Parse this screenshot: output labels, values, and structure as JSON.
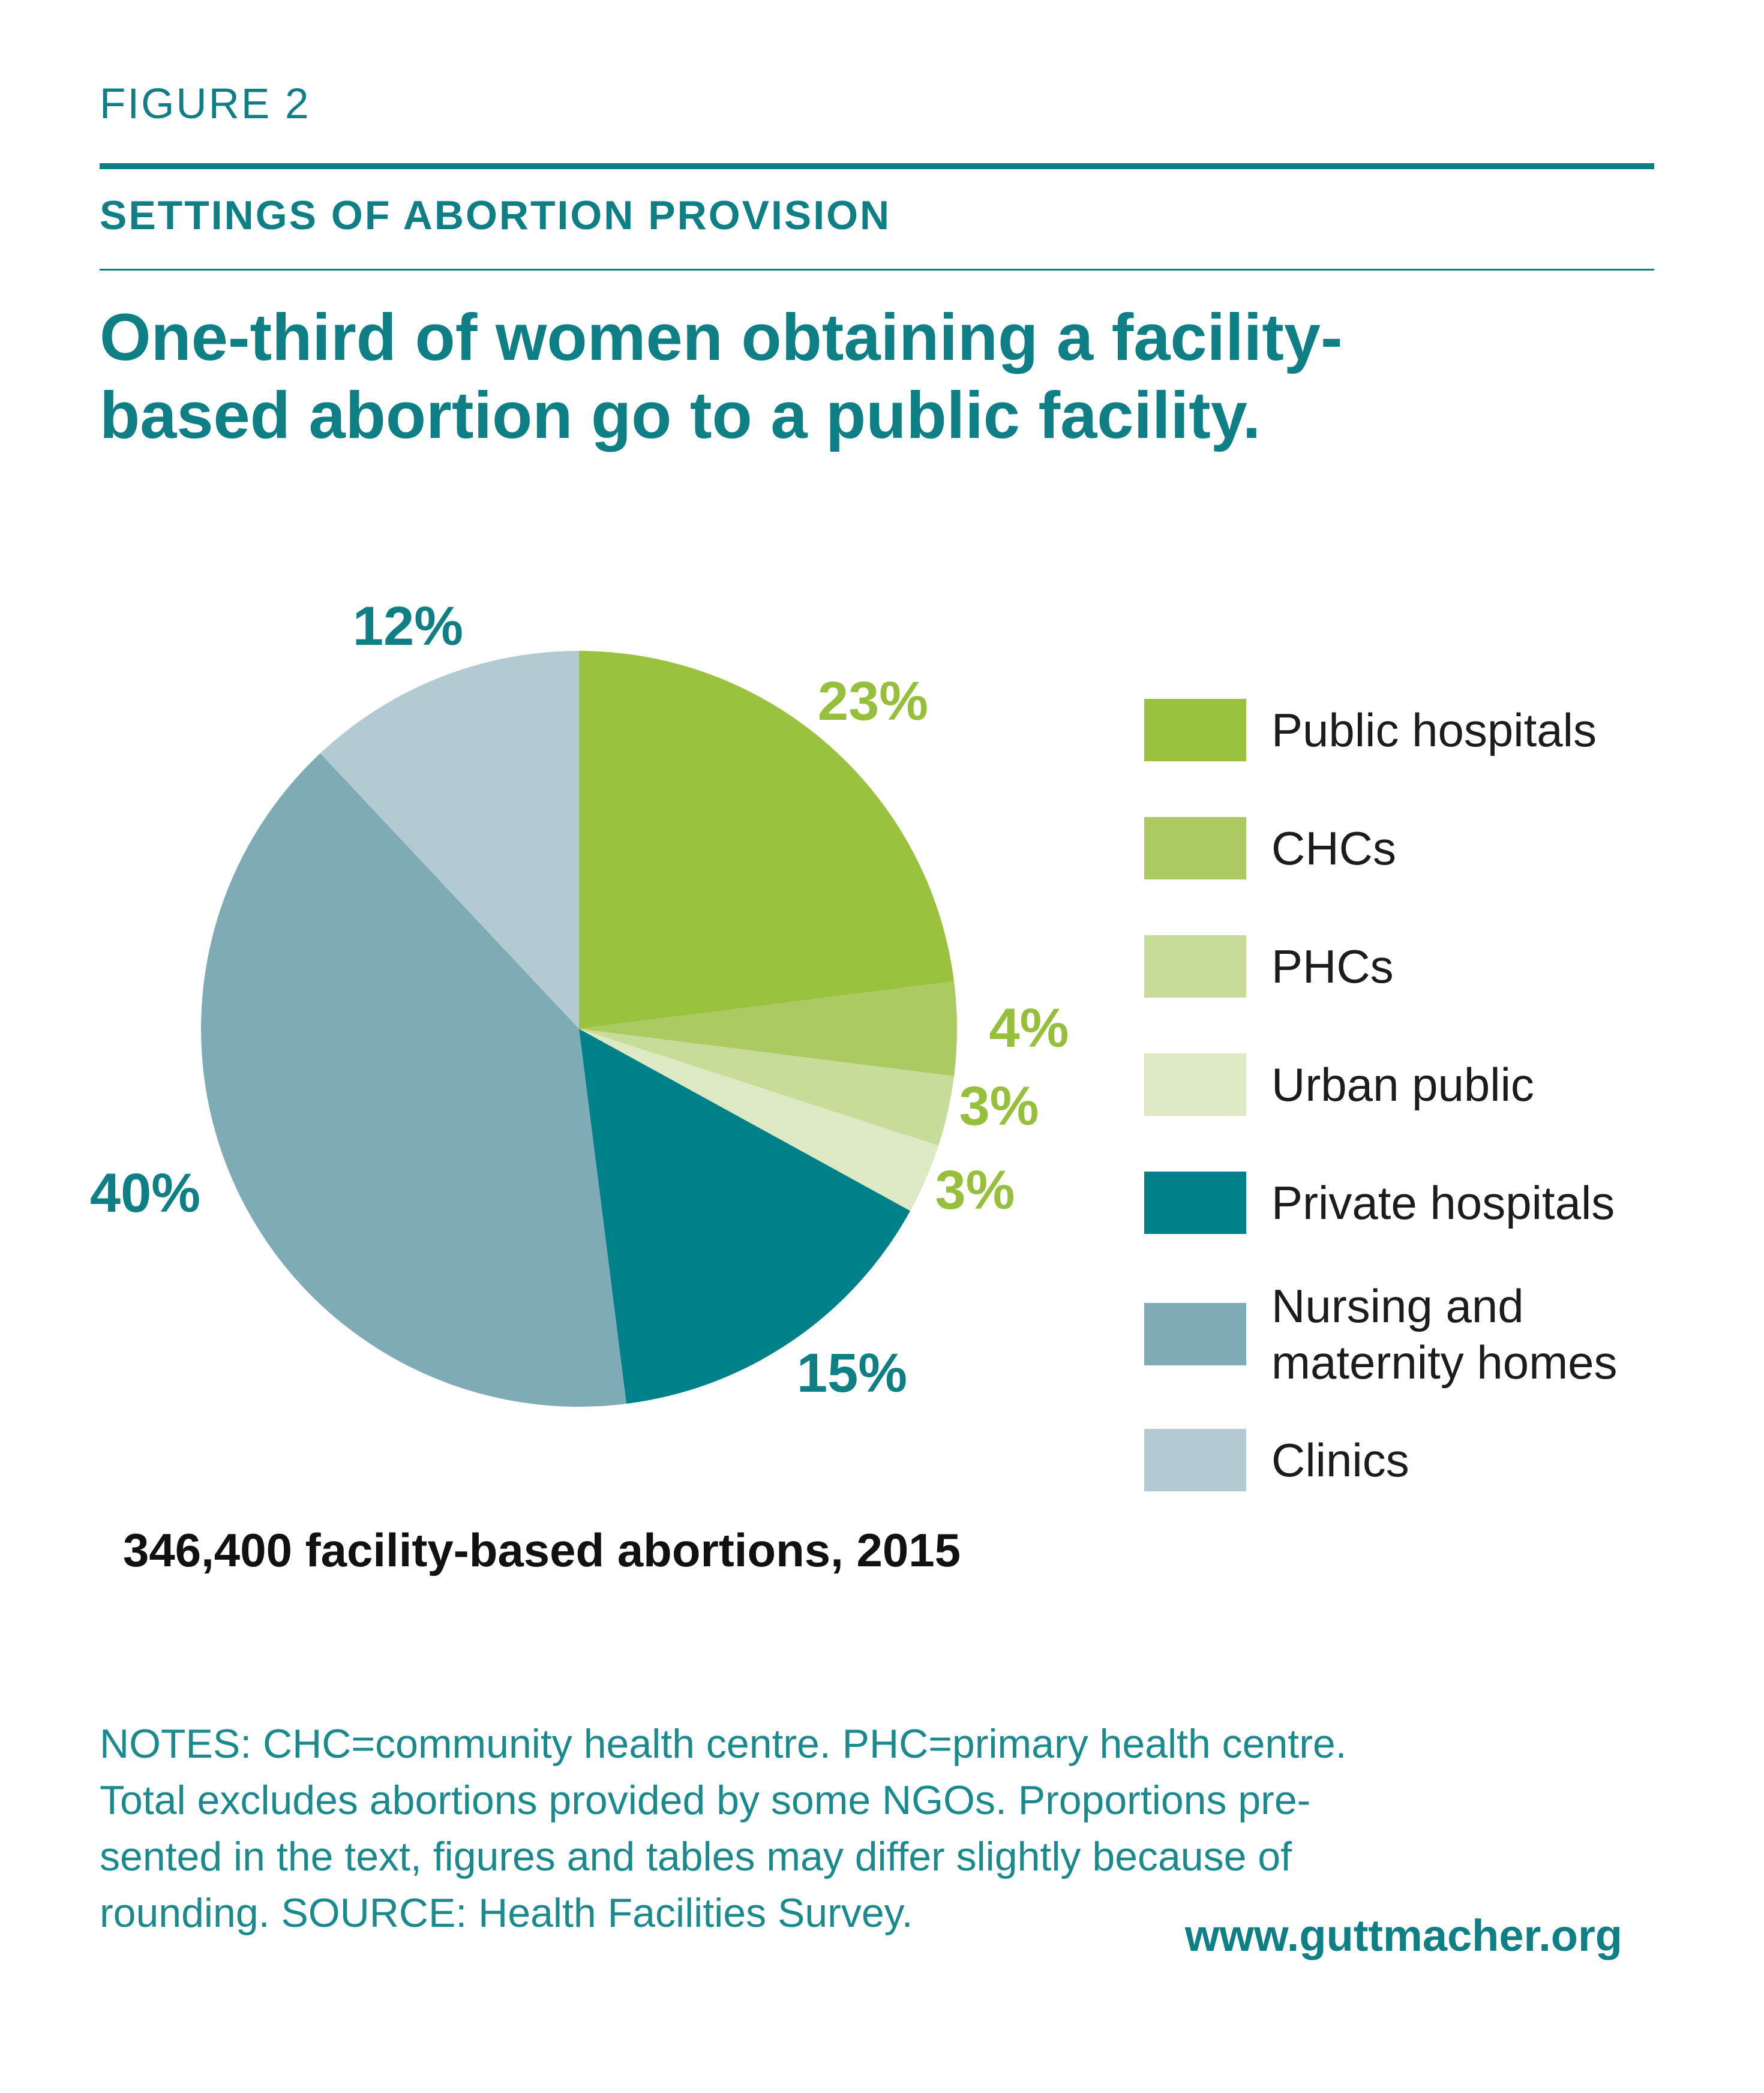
{
  "figure_label": "FIGURE 2",
  "section_title": "SETTINGS OF ABORTION PROVISION",
  "headline_lines": [
    "One-third of women obtaining a facility-",
    "based abortion go to a public facility."
  ],
  "colors": {
    "accent": "#0f7f86",
    "public_hospitals": "#9bc23f",
    "chcs": "#acca62",
    "phcs": "#c6dc98",
    "urban_public": "#dde9c2",
    "private_hospitals": "#008089",
    "nursing_maternity": "#7eabb5",
    "clinics": "#b2cbd3"
  },
  "chart_data": {
    "type": "pie",
    "title": "346,400 facility-based abortions, 2015",
    "slices": [
      {
        "label": "Public hospitals",
        "value": 23,
        "display": "23%",
        "color": "#9bc23f",
        "label_color": "#96c03c"
      },
      {
        "label": "CHCs",
        "value": 4,
        "display": "4%",
        "color": "#acca62",
        "label_color": "#96c03c"
      },
      {
        "label": "PHCs",
        "value": 3,
        "display": "3%",
        "color": "#c6dc98",
        "label_color": "#96c03c"
      },
      {
        "label": "Urban public",
        "value": 3,
        "display": "3%",
        "color": "#dde9c2",
        "label_color": "#96c03c"
      },
      {
        "label": "Private hospitals",
        "value": 15,
        "display": "15%",
        "color": "#008089",
        "label_color": "#0f7f86"
      },
      {
        "label": "Nursing and maternity homes",
        "value": 40,
        "display": "40%",
        "color": "#7eabb5",
        "label_color": "#0f7f86"
      },
      {
        "label": "Clinics",
        "value": 12,
        "display": "12%",
        "color": "#b2cbd3",
        "label_color": "#0f7f86"
      }
    ],
    "legend_placement": "right"
  },
  "legend": [
    {
      "lines": [
        "Public hospitals"
      ],
      "color": "#9bc23f"
    },
    {
      "lines": [
        "CHCs"
      ],
      "color": "#acca62"
    },
    {
      "lines": [
        "PHCs"
      ],
      "color": "#c6dc98"
    },
    {
      "lines": [
        "Urban public"
      ],
      "color": "#dde9c2"
    },
    {
      "lines": [
        "Private hospitals"
      ],
      "color": "#008089"
    },
    {
      "lines": [
        "Nursing and",
        "maternity homes"
      ],
      "color": "#7eabb5"
    },
    {
      "lines": [
        "Clinics"
      ],
      "color": "#b2cbd3"
    }
  ],
  "notes_lines": [
    "NOTES: CHC=community health centre. PHC=primary health centre.",
    "Total excludes abortions provided by some NGOs. Proportions pre-",
    "sented in the text, figures and tables may differ slightly because of",
    "rounding. SOURCE: Health Facilities Survey."
  ],
  "source_url": "www.guttmacher.org"
}
